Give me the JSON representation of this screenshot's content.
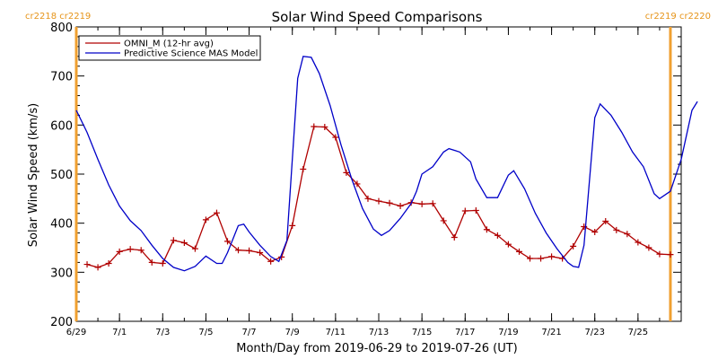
{
  "chart_data": {
    "type": "line",
    "title": "Solar Wind Speed Comparisons",
    "xlabel": "Month/Day from 2019-06-29 to 2019-07-26 (UT)",
    "ylabel": "Solar Wind Speed (km/s)",
    "xlim": [
      "2019-06-29",
      "2019-07-27"
    ],
    "ylim": [
      200,
      800
    ],
    "ytick_labels": [
      "200",
      "300",
      "400",
      "500",
      "600",
      "700",
      "800"
    ],
    "xticks": [
      {
        "date": "2019-06-29",
        "label": "6/29"
      },
      {
        "date": "2019-07-01",
        "label": "7/1"
      },
      {
        "date": "2019-07-03",
        "label": "7/3"
      },
      {
        "date": "2019-07-05",
        "label": "7/5"
      },
      {
        "date": "2019-07-07",
        "label": "7/7"
      },
      {
        "date": "2019-07-09",
        "label": "7/9"
      },
      {
        "date": "2019-07-11",
        "label": "7/11"
      },
      {
        "date": "2019-07-13",
        "label": "7/13"
      },
      {
        "date": "2019-07-15",
        "label": "7/15"
      },
      {
        "date": "2019-07-17",
        "label": "7/17"
      },
      {
        "date": "2019-07-19",
        "label": "7/19"
      },
      {
        "date": "2019-07-21",
        "label": "7/21"
      },
      {
        "date": "2019-07-23",
        "label": "7/23"
      },
      {
        "date": "2019-07-25",
        "label": "7/25"
      }
    ],
    "legend": "top-left",
    "carrington_markers": [
      {
        "date": "2019-06-29T00:00",
        "label": "cr2218 cr2219",
        "side": "left"
      },
      {
        "date": "2019-07-26T12:00",
        "label": "cr2219 cr2220",
        "side": "right"
      }
    ],
    "series": [
      {
        "name": "OMNI_M (12-hr avg)",
        "color": "#b00000",
        "marker": "plus",
        "points": [
          [
            "2019-06-29T12:00",
            316
          ],
          [
            "2019-06-30T00:00",
            310
          ],
          [
            "2019-06-30T12:00",
            318
          ],
          [
            "2019-07-01T00:00",
            342
          ],
          [
            "2019-07-01T12:00",
            347
          ],
          [
            "2019-07-02T00:00",
            345
          ],
          [
            "2019-07-02T12:00",
            320
          ],
          [
            "2019-07-03T00:00",
            318
          ],
          [
            "2019-07-03T12:00",
            365
          ],
          [
            "2019-07-04T00:00",
            360
          ],
          [
            "2019-07-04T12:00",
            348
          ],
          [
            "2019-07-05T00:00",
            407
          ],
          [
            "2019-07-05T12:00",
            421
          ],
          [
            "2019-07-06T00:00",
            363
          ],
          [
            "2019-07-06T12:00",
            345
          ],
          [
            "2019-07-07T00:00",
            344
          ],
          [
            "2019-07-07T12:00",
            340
          ],
          [
            "2019-07-08T00:00",
            322
          ],
          [
            "2019-07-08T12:00",
            331
          ],
          [
            "2019-07-09T00:00",
            395
          ],
          [
            "2019-07-09T12:00",
            510
          ],
          [
            "2019-07-10T00:00",
            597
          ],
          [
            "2019-07-10T12:00",
            596
          ],
          [
            "2019-07-11T00:00",
            575
          ],
          [
            "2019-07-11T12:00",
            503
          ],
          [
            "2019-07-12T00:00",
            480
          ],
          [
            "2019-07-12T12:00",
            450
          ],
          [
            "2019-07-13T00:00",
            445
          ],
          [
            "2019-07-13T12:00",
            441
          ],
          [
            "2019-07-14T00:00",
            435
          ],
          [
            "2019-07-14T12:00",
            442
          ],
          [
            "2019-07-15T00:00",
            439
          ],
          [
            "2019-07-15T12:00",
            440
          ],
          [
            "2019-07-16T00:00",
            405
          ],
          [
            "2019-07-16T12:00",
            371
          ],
          [
            "2019-07-17T00:00",
            425
          ],
          [
            "2019-07-17T12:00",
            426
          ],
          [
            "2019-07-18T00:00",
            387
          ],
          [
            "2019-07-18T12:00",
            375
          ],
          [
            "2019-07-19T00:00",
            357
          ],
          [
            "2019-07-19T12:00",
            342
          ],
          [
            "2019-07-20T00:00",
            328
          ],
          [
            "2019-07-20T12:00",
            328
          ],
          [
            "2019-07-21T00:00",
            332
          ],
          [
            "2019-07-21T12:00",
            328
          ],
          [
            "2019-07-22T00:00",
            353
          ],
          [
            "2019-07-22T12:00",
            393
          ],
          [
            "2019-07-23T00:00",
            382
          ],
          [
            "2019-07-23T12:00",
            404
          ],
          [
            "2019-07-24T00:00",
            386
          ],
          [
            "2019-07-24T12:00",
            378
          ],
          [
            "2019-07-25T00:00",
            361
          ],
          [
            "2019-07-25T12:00",
            350
          ],
          [
            "2019-07-26T00:00",
            337
          ],
          [
            "2019-07-26T12:00",
            336
          ]
        ]
      },
      {
        "name": "Predictive Science MAS Model",
        "color": "#0000c8",
        "marker": "none",
        "points": [
          [
            "2019-06-29T00:00",
            630
          ],
          [
            "2019-06-29T12:00",
            585
          ],
          [
            "2019-06-30T00:00",
            530
          ],
          [
            "2019-06-30T12:00",
            478
          ],
          [
            "2019-07-01T00:00",
            435
          ],
          [
            "2019-07-01T12:00",
            405
          ],
          [
            "2019-07-02T00:00",
            385
          ],
          [
            "2019-07-02T12:00",
            355
          ],
          [
            "2019-07-03T00:00",
            328
          ],
          [
            "2019-07-03T12:00",
            310
          ],
          [
            "2019-07-04T00:00",
            303
          ],
          [
            "2019-07-04T12:00",
            312
          ],
          [
            "2019-07-05T00:00",
            333
          ],
          [
            "2019-07-05T12:00",
            318
          ],
          [
            "2019-07-05T18:00",
            318
          ],
          [
            "2019-07-06T00:00",
            340
          ],
          [
            "2019-07-06T12:00",
            395
          ],
          [
            "2019-07-06T18:00",
            398
          ],
          [
            "2019-07-07T00:00",
            382
          ],
          [
            "2019-07-07T12:00",
            355
          ],
          [
            "2019-07-08T00:00",
            332
          ],
          [
            "2019-07-08T09:00",
            322
          ],
          [
            "2019-07-08T18:00",
            365
          ],
          [
            "2019-07-09T06:00",
            695
          ],
          [
            "2019-07-09T12:00",
            740
          ],
          [
            "2019-07-09T21:00",
            738
          ],
          [
            "2019-07-10T06:00",
            705
          ],
          [
            "2019-07-10T18:00",
            640
          ],
          [
            "2019-07-11T06:00",
            560
          ],
          [
            "2019-07-11T18:00",
            490
          ],
          [
            "2019-07-12T06:00",
            430
          ],
          [
            "2019-07-12T18:00",
            388
          ],
          [
            "2019-07-13T03:00",
            375
          ],
          [
            "2019-07-13T12:00",
            385
          ],
          [
            "2019-07-14T00:00",
            410
          ],
          [
            "2019-07-14T12:00",
            440
          ],
          [
            "2019-07-14T18:00",
            465
          ],
          [
            "2019-07-15T00:00",
            500
          ],
          [
            "2019-07-15T12:00",
            515
          ],
          [
            "2019-07-16T00:00",
            545
          ],
          [
            "2019-07-16T06:00",
            552
          ],
          [
            "2019-07-16T18:00",
            545
          ],
          [
            "2019-07-17T06:00",
            525
          ],
          [
            "2019-07-17T12:00",
            490
          ],
          [
            "2019-07-18T00:00",
            452
          ],
          [
            "2019-07-18T12:00",
            452
          ],
          [
            "2019-07-19T00:00",
            498
          ],
          [
            "2019-07-19T06:00",
            507
          ],
          [
            "2019-07-19T18:00",
            470
          ],
          [
            "2019-07-20T06:00",
            420
          ],
          [
            "2019-07-20T18:00",
            380
          ],
          [
            "2019-07-21T06:00",
            348
          ],
          [
            "2019-07-21T18:00",
            320
          ],
          [
            "2019-07-22T00:00",
            312
          ],
          [
            "2019-07-22T06:00",
            310
          ],
          [
            "2019-07-22T12:00",
            355
          ],
          [
            "2019-07-23T00:00",
            615
          ],
          [
            "2019-07-23T06:00",
            643
          ],
          [
            "2019-07-23T18:00",
            620
          ],
          [
            "2019-07-24T06:00",
            585
          ],
          [
            "2019-07-24T18:00",
            545
          ],
          [
            "2019-07-25T06:00",
            515
          ],
          [
            "2019-07-25T18:00",
            460
          ],
          [
            "2019-07-26T00:00",
            450
          ],
          [
            "2019-07-26T12:00",
            465
          ],
          [
            "2019-07-27T00:00",
            530
          ],
          [
            "2019-07-27T12:00",
            630
          ],
          [
            "2019-07-27T18:00",
            648
          ]
        ]
      }
    ]
  }
}
